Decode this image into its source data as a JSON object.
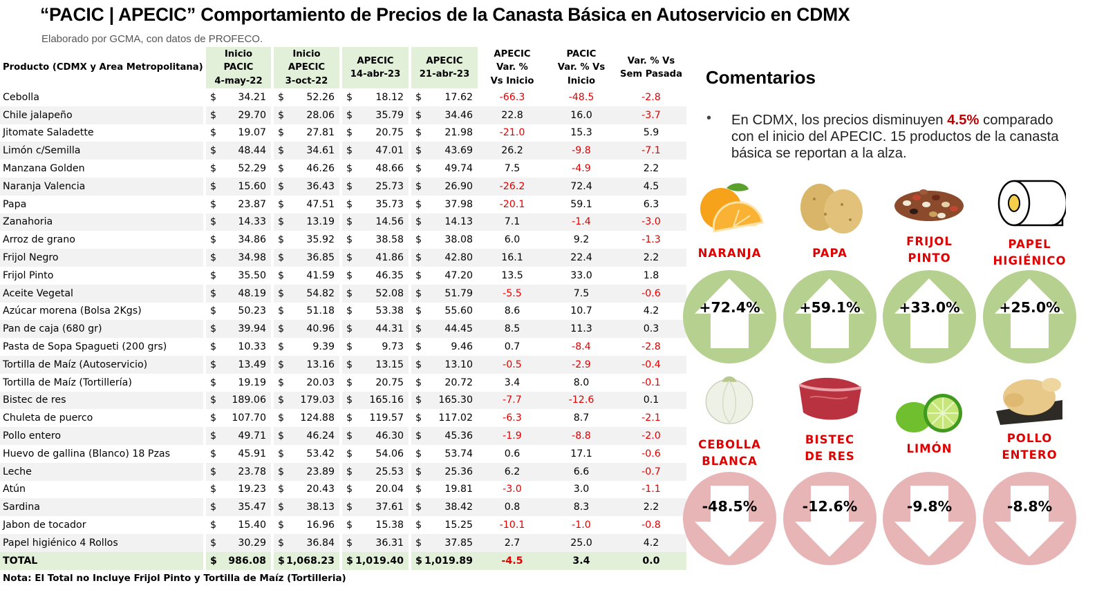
{
  "title": "“PACIC | APECIC” Comportamiento de Precios de la Canasta Básica en Autoservicio en CDMX",
  "subtitle": "Elaborado por GCMA, con datos de PROFECO.",
  "table": {
    "headers": {
      "product": "Producto (CDMX y Area Metropolitana)",
      "h1": [
        "Inicio",
        "PACIC",
        "4-may-22"
      ],
      "h2": [
        "Inicio",
        "APECIC",
        "3-oct-22"
      ],
      "h3": [
        "APECIC",
        "14-abr-23"
      ],
      "h4": [
        "APECIC",
        "21-abr-23"
      ],
      "h5": [
        "APECIC",
        "Var. %",
        "Vs  Inicio"
      ],
      "h6": [
        "PACIC",
        "Var. % Vs",
        "Inicio"
      ],
      "h7": [
        "Var. % Vs",
        "Sem Pasada"
      ]
    },
    "currency": "$",
    "rows": [
      {
        "name": "Cebolla",
        "p1": "34.21",
        "p2": "52.26",
        "p3": "18.12",
        "p4": "17.62",
        "v1": "-66.3",
        "v2": "-48.5",
        "v3": "-2.8"
      },
      {
        "name": "Chile jalapeño",
        "p1": "29.70",
        "p2": "28.06",
        "p3": "35.79",
        "p4": "34.46",
        "v1": "22.8",
        "v2": "16.0",
        "v3": "-3.7"
      },
      {
        "name": "Jitomate Saladette",
        "p1": "19.07",
        "p2": "27.81",
        "p3": "20.75",
        "p4": "21.98",
        "v1": "-21.0",
        "v2": "15.3",
        "v3": "5.9"
      },
      {
        "name": "Limón c/Semilla",
        "p1": "48.44",
        "p2": "34.61",
        "p3": "47.01",
        "p4": "43.69",
        "v1": "26.2",
        "v2": "-9.8",
        "v3": "-7.1"
      },
      {
        "name": "Manzana Golden",
        "p1": "52.29",
        "p2": "46.26",
        "p3": "48.66",
        "p4": "49.74",
        "v1": "7.5",
        "v2": "-4.9",
        "v3": "2.2"
      },
      {
        "name": "Naranja Valencia",
        "p1": "15.60",
        "p2": "36.43",
        "p3": "25.73",
        "p4": "26.90",
        "v1": "-26.2",
        "v2": "72.4",
        "v3": "4.5"
      },
      {
        "name": "Papa",
        "p1": "23.87",
        "p2": "47.51",
        "p3": "35.73",
        "p4": "37.98",
        "v1": "-20.1",
        "v2": "59.1",
        "v3": "6.3"
      },
      {
        "name": "Zanahoria",
        "p1": "14.33",
        "p2": "13.19",
        "p3": "14.56",
        "p4": "14.13",
        "v1": "7.1",
        "v2": "-1.4",
        "v3": "-3.0"
      },
      {
        "name": "Arroz de grano",
        "p1": "34.86",
        "p2": "35.92",
        "p3": "38.58",
        "p4": "38.08",
        "v1": "6.0",
        "v2": "9.2",
        "v3": "-1.3"
      },
      {
        "name": "Frijol Negro",
        "p1": "34.98",
        "p2": "36.85",
        "p3": "41.86",
        "p4": "42.80",
        "v1": "16.1",
        "v2": "22.4",
        "v3": "2.2"
      },
      {
        "name": "Frijol Pinto",
        "p1": "35.50",
        "p2": "41.59",
        "p3": "46.35",
        "p4": "47.20",
        "v1": "13.5",
        "v2": "33.0",
        "v3": "1.8"
      },
      {
        "name": "Aceite Vegetal",
        "p1": "48.19",
        "p2": "54.82",
        "p3": "52.08",
        "p4": "51.79",
        "v1": "-5.5",
        "v2": "7.5",
        "v3": "-0.6"
      },
      {
        "name": "Azúcar morena (Bolsa 2Kgs)",
        "p1": "50.23",
        "p2": "51.18",
        "p3": "53.38",
        "p4": "55.60",
        "v1": "8.6",
        "v2": "10.7",
        "v3": "4.2"
      },
      {
        "name": "Pan de caja (680 gr)",
        "p1": "39.94",
        "p2": "40.96",
        "p3": "44.31",
        "p4": "44.45",
        "v1": "8.5",
        "v2": "11.3",
        "v3": "0.3"
      },
      {
        "name": "Pasta de Sopa Spagueti (200 grs)",
        "p1": "10.33",
        "p2": "9.39",
        "p3": "9.73",
        "p4": "9.46",
        "v1": "0.7",
        "v2": "-8.4",
        "v3": "-2.8"
      },
      {
        "name": "Tortilla de Maíz (Autoservicio)",
        "p1": "13.49",
        "p2": "13.16",
        "p3": "13.15",
        "p4": "13.10",
        "v1": "-0.5",
        "v2": "-2.9",
        "v3": "-0.4"
      },
      {
        "name": "Tortilla de Maíz (Tortillería)",
        "p1": "19.19",
        "p2": "20.03",
        "p3": "20.75",
        "p4": "20.72",
        "v1": "3.4",
        "v2": "8.0",
        "v3": "-0.1"
      },
      {
        "name": "Bistec de res",
        "p1": "189.06",
        "p2": "179.03",
        "p3": "165.16",
        "p4": "165.30",
        "v1": "-7.7",
        "v2": "-12.6",
        "v3": "0.1"
      },
      {
        "name": "Chuleta de puerco",
        "p1": "107.70",
        "p2": "124.88",
        "p3": "119.57",
        "p4": "117.02",
        "v1": "-6.3",
        "v2": "8.7",
        "v3": "-2.1"
      },
      {
        "name": "Pollo entero",
        "p1": "49.71",
        "p2": "46.24",
        "p3": "46.30",
        "p4": "45.36",
        "v1": "-1.9",
        "v2": "-8.8",
        "v3": "-2.0"
      },
      {
        "name": "Huevo de gallina (Blanco) 18 Pzas",
        "p1": "45.91",
        "p2": "53.42",
        "p3": "54.06",
        "p4": "53.74",
        "v1": "0.6",
        "v2": "17.1",
        "v3": "-0.6"
      },
      {
        "name": "Leche",
        "p1": "23.78",
        "p2": "23.89",
        "p3": "25.53",
        "p4": "25.36",
        "v1": "6.2",
        "v2": "6.6",
        "v3": "-0.7"
      },
      {
        "name": "Atún",
        "p1": "19.23",
        "p2": "20.43",
        "p3": "20.04",
        "p4": "19.81",
        "v1": "-3.0",
        "v2": "3.0",
        "v3": "-1.1"
      },
      {
        "name": "Sardina",
        "p1": "35.47",
        "p2": "38.13",
        "p3": "37.61",
        "p4": "38.42",
        "v1": "0.8",
        "v2": "8.3",
        "v3": "2.2"
      },
      {
        "name": "Jabon de tocador",
        "p1": "15.40",
        "p2": "16.96",
        "p3": "15.38",
        "p4": "15.25",
        "v1": "-10.1",
        "v2": "-1.0",
        "v3": "-0.8"
      },
      {
        "name": "Papel higiénico 4 Rollos",
        "p1": "30.29",
        "p2": "36.84",
        "p3": "36.31",
        "p4": "37.85",
        "v1": "2.7",
        "v2": "25.0",
        "v3": "4.2"
      }
    ],
    "total": {
      "name": "TOTAL",
      "p1": "986.08",
      "p2": "1,068.23",
      "p3": "1,019.40",
      "p4": "1,019.89",
      "v1": "-4.5",
      "v2": "3.4",
      "v3": "0.0"
    }
  },
  "note": "Nota: El Total no Incluye Frijol Pinto y Tortilla de Maíz (Tortilleria)",
  "comments": {
    "title": "Comentarios",
    "bullet": "•",
    "text_before": "En CDMX, los precios disminuyen ",
    "highlight": "4.5%",
    "text_after": " comparado con el inicio del APECIC. 15 productos de la canasta básica se reportan a la alza."
  },
  "colors": {
    "negative": "#e00000",
    "header_green": "#e2efd9",
    "up_circle": "#b5d08f",
    "down_circle": "#e8b5b7",
    "label_red": "#e00000"
  },
  "highlights_up": [
    {
      "label": [
        "NARANJA"
      ],
      "value": "+72.4%",
      "icon": "orange-icon"
    },
    {
      "label": [
        "PAPA"
      ],
      "value": "+59.1%",
      "icon": "potato-icon"
    },
    {
      "label": [
        "FRIJOL",
        "PINTO"
      ],
      "value": "+33.0%",
      "icon": "beans-icon"
    },
    {
      "label": [
        "PAPEL",
        "HIGIÉNICO"
      ],
      "value": "+25.0%",
      "icon": "toilet-paper-icon"
    }
  ],
  "highlights_down": [
    {
      "label": [
        "CEBOLLA",
        "BLANCA"
      ],
      "value": "-48.5%",
      "icon": "onion-icon"
    },
    {
      "label": [
        "BISTEC",
        "DE RES"
      ],
      "value": "-12.6%",
      "icon": "steak-icon"
    },
    {
      "label": [
        "LIMÓN"
      ],
      "value": "-9.8%",
      "icon": "lime-icon"
    },
    {
      "label": [
        "POLLO",
        "ENTERO"
      ],
      "value": "-8.8%",
      "icon": "chicken-icon"
    }
  ]
}
